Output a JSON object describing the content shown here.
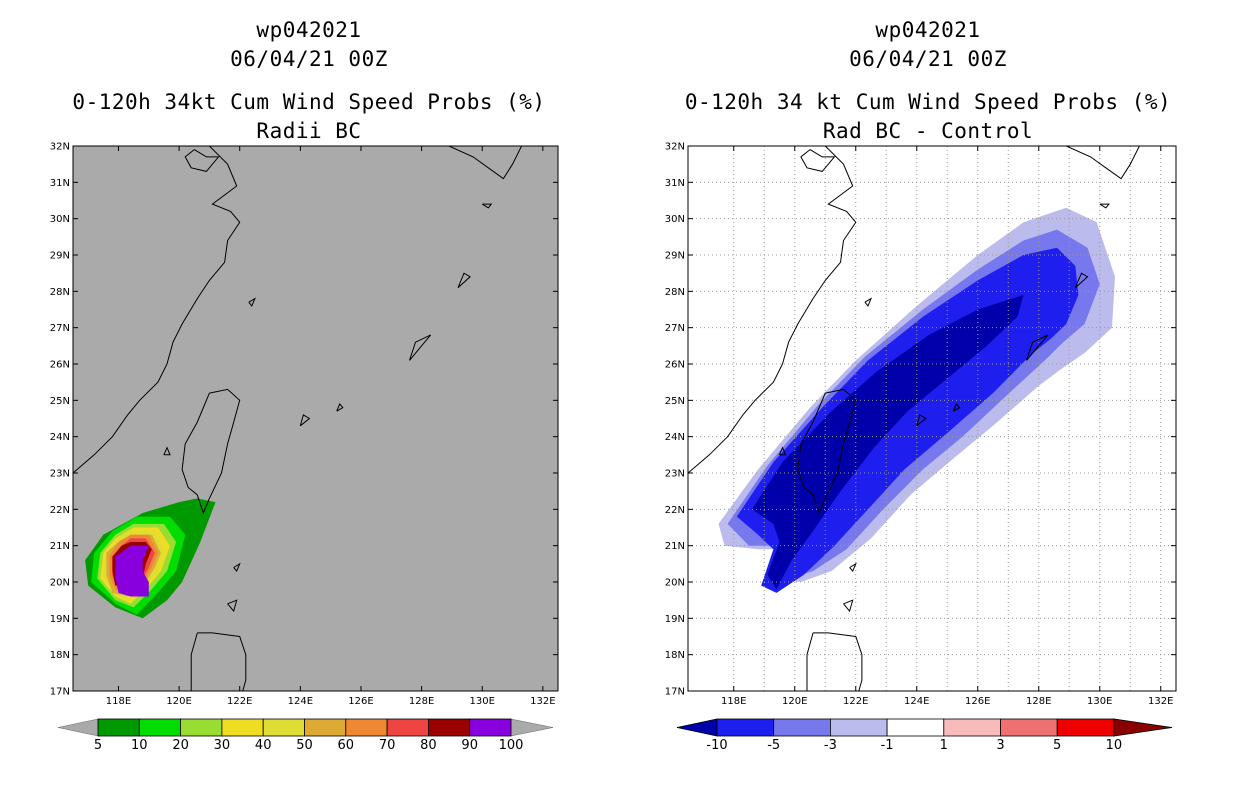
{
  "chart_data": [
    {
      "type": "heatmap",
      "run_id": "wp042021",
      "date": "06/04/21 00Z",
      "title": "0-120h 34kt Cum Wind Speed Probs (%)",
      "subtitle": "Radii BC",
      "xlim": [
        116.5,
        132.5
      ],
      "ylim": [
        17,
        32
      ],
      "x_ticks": [
        "118E",
        "120E",
        "122E",
        "124E",
        "126E",
        "128E",
        "130E",
        "132E"
      ],
      "y_ticks": [
        "17N",
        "18N",
        "19N",
        "20N",
        "21N",
        "22N",
        "23N",
        "24N",
        "25N",
        "26N",
        "27N",
        "28N",
        "29N",
        "30N",
        "31N",
        "32N"
      ],
      "gridlines": false,
      "colorbar_labels": [
        "5",
        "10",
        "20",
        "30",
        "40",
        "50",
        "60",
        "70",
        "80",
        "90",
        "100"
      ],
      "colorbar_colors": [
        "#009900",
        "#00dd00",
        "#99dd33",
        "#eedd22",
        "#dddd33",
        "#ddaa33",
        "#ee8833",
        "#ee4444",
        "#990000",
        "#8800dd"
      ],
      "contours": [
        {
          "level": 5,
          "color": "#009900",
          "points": [
            [
              118.8,
              21.9
            ],
            [
              120.0,
              22.2
            ],
            [
              120.6,
              22.3
            ],
            [
              121.2,
              22.2
            ],
            [
              120.7,
              21.1
            ],
            [
              120.1,
              20.0
            ],
            [
              119.6,
              19.5
            ],
            [
              118.8,
              19.0
            ],
            [
              117.9,
              19.3
            ],
            [
              117.0,
              19.9
            ],
            [
              116.9,
              20.6
            ],
            [
              117.5,
              21.3
            ]
          ]
        },
        {
          "level": 10,
          "color": "#00dd00",
          "points": [
            [
              118.6,
              21.8
            ],
            [
              119.7,
              21.8
            ],
            [
              120.2,
              21.3
            ],
            [
              119.9,
              20.3
            ],
            [
              119.3,
              19.7
            ],
            [
              118.6,
              19.1
            ],
            [
              117.9,
              19.4
            ],
            [
              117.1,
              20.0
            ],
            [
              117.2,
              20.8
            ],
            [
              117.8,
              21.4
            ]
          ]
        },
        {
          "level": 20,
          "color": "#99dd33",
          "points": [
            [
              118.5,
              21.6
            ],
            [
              119.5,
              21.6
            ],
            [
              119.9,
              21.1
            ],
            [
              119.6,
              20.3
            ],
            [
              119.1,
              19.8
            ],
            [
              118.5,
              19.3
            ],
            [
              117.9,
              19.5
            ],
            [
              117.3,
              20.1
            ],
            [
              117.4,
              20.8
            ],
            [
              117.9,
              21.3
            ]
          ]
        },
        {
          "level": 30,
          "color": "#eedd22",
          "points": [
            [
              118.5,
              21.5
            ],
            [
              119.3,
              21.5
            ],
            [
              119.7,
              21.0
            ],
            [
              119.4,
              20.3
            ],
            [
              119.0,
              19.9
            ],
            [
              118.4,
              19.4
            ],
            [
              117.9,
              19.6
            ],
            [
              117.4,
              20.1
            ],
            [
              117.5,
              20.8
            ],
            [
              117.9,
              21.2
            ]
          ]
        },
        {
          "level": 40,
          "color": "#dddd33",
          "points": [
            [
              118.4,
              21.4
            ],
            [
              119.2,
              21.4
            ],
            [
              119.5,
              20.9
            ],
            [
              119.3,
              20.3
            ],
            [
              118.9,
              19.9
            ],
            [
              118.3,
              19.5
            ],
            [
              117.8,
              19.7
            ],
            [
              117.5,
              20.2
            ],
            [
              117.6,
              20.8
            ],
            [
              118.0,
              21.2
            ]
          ]
        },
        {
          "level": 50,
          "color": "#ddaa33",
          "points": [
            [
              118.4,
              21.3
            ],
            [
              119.1,
              21.3
            ],
            [
              119.4,
              20.8
            ],
            [
              119.2,
              20.4
            ],
            [
              118.9,
              20.0
            ],
            [
              118.3,
              19.6
            ],
            [
              117.8,
              19.7
            ],
            [
              117.6,
              20.2
            ],
            [
              117.6,
              20.8
            ],
            [
              118.0,
              21.1
            ]
          ]
        },
        {
          "level": 60,
          "color": "#ee8833",
          "points": [
            [
              118.4,
              21.3
            ],
            [
              119.0,
              21.3
            ],
            [
              119.3,
              20.8
            ],
            [
              119.1,
              20.4
            ],
            [
              118.8,
              20.0
            ],
            [
              118.3,
              19.7
            ],
            [
              117.9,
              19.8
            ],
            [
              117.7,
              20.2
            ],
            [
              117.7,
              20.7
            ],
            [
              118.0,
              21.1
            ]
          ]
        },
        {
          "level": 70,
          "color": "#ee4444",
          "points": [
            [
              118.4,
              21.2
            ],
            [
              118.9,
              21.2
            ],
            [
              119.2,
              20.8
            ],
            [
              119.0,
              20.4
            ],
            [
              118.8,
              20.1
            ],
            [
              118.3,
              19.8
            ],
            [
              117.9,
              19.9
            ],
            [
              117.8,
              20.2
            ],
            [
              117.8,
              20.7
            ],
            [
              118.1,
              21.0
            ]
          ]
        },
        {
          "level": 80,
          "color": "#990000",
          "points": [
            [
              118.4,
              21.1
            ],
            [
              118.9,
              21.1
            ],
            [
              119.1,
              20.9
            ],
            [
              118.9,
              20.5
            ],
            [
              118.8,
              20.1
            ],
            [
              118.3,
              19.9
            ],
            [
              117.9,
              19.9
            ],
            [
              117.8,
              20.3
            ],
            [
              117.8,
              20.7
            ],
            [
              118.1,
              21.0
            ]
          ]
        },
        {
          "level": 90,
          "color": "#8800dd",
          "points": [
            [
              118.4,
              21.0
            ],
            [
              119.0,
              21.0
            ],
            [
              118.8,
              20.6
            ],
            [
              118.8,
              20.3
            ],
            [
              119.0,
              20.0
            ],
            [
              119.0,
              19.6
            ],
            [
              118.4,
              19.6
            ],
            [
              118.0,
              19.7
            ],
            [
              117.9,
              20.1
            ],
            [
              117.9,
              20.7
            ]
          ]
        }
      ]
    },
    {
      "type": "heatmap",
      "run_id": "wp042021",
      "date": "06/04/21 00Z",
      "title": "0-120h 34 kt Cum Wind Speed Probs (%)",
      "subtitle": "Rad BC - Control",
      "xlim": [
        116.5,
        132.5
      ],
      "ylim": [
        17,
        32
      ],
      "x_ticks": [
        "118E",
        "120E",
        "122E",
        "124E",
        "126E",
        "128E",
        "130E",
        "132E"
      ],
      "y_ticks": [
        "17N",
        "18N",
        "19N",
        "20N",
        "21N",
        "22N",
        "23N",
        "24N",
        "25N",
        "26N",
        "27N",
        "28N",
        "29N",
        "30N",
        "31N",
        "32N"
      ],
      "gridlines": true,
      "colorbar_labels": [
        "-10",
        "-5",
        "-3",
        "-1",
        "1",
        "3",
        "5",
        "10"
      ],
      "colorbar_colors": [
        "#0000aa",
        "#1e1eee",
        "#7777ee",
        "#bbbbee",
        "#ffffff",
        "#f7bbbb",
        "#ee7070",
        "#ee0000",
        "#880000"
      ],
      "contours": [
        {
          "level": -1,
          "color": "#bbbbee",
          "points": [
            [
              117.5,
              21.6
            ],
            [
              118.8,
              23.1
            ],
            [
              120.5,
              24.8
            ],
            [
              122.0,
              26.1
            ],
            [
              124.0,
              27.6
            ],
            [
              126.0,
              29.0
            ],
            [
              127.5,
              29.9
            ],
            [
              128.9,
              30.3
            ],
            [
              129.9,
              29.9
            ],
            [
              130.5,
              28.4
            ],
            [
              130.4,
              27.0
            ],
            [
              129.5,
              26.3
            ],
            [
              128.8,
              25.9
            ],
            [
              128.0,
              25.4
            ],
            [
              126.5,
              24.3
            ],
            [
              125.2,
              23.4
            ],
            [
              123.8,
              22.4
            ],
            [
              122.5,
              21.2
            ],
            [
              121.2,
              20.3
            ],
            [
              120.2,
              20.0
            ],
            [
              119.4,
              20.1
            ],
            [
              119.4,
              20.9
            ],
            [
              118.8,
              20.9
            ],
            [
              117.7,
              21.0
            ]
          ]
        },
        {
          "level": -3,
          "color": "#7777ee",
          "points": [
            [
              117.8,
              21.6
            ],
            [
              119.1,
              23.2
            ],
            [
              120.8,
              24.9
            ],
            [
              122.3,
              26.2
            ],
            [
              124.2,
              27.5
            ],
            [
              126.0,
              28.6
            ],
            [
              127.5,
              29.4
            ],
            [
              128.6,
              29.7
            ],
            [
              129.6,
              29.2
            ],
            [
              130.0,
              28.2
            ],
            [
              129.5,
              27.1
            ],
            [
              128.8,
              26.6
            ],
            [
              128.2,
              26.1
            ],
            [
              126.9,
              25.1
            ],
            [
              125.5,
              24.0
            ],
            [
              124.2,
              23.1
            ],
            [
              122.9,
              22.0
            ],
            [
              121.7,
              20.9
            ],
            [
              120.6,
              20.3
            ],
            [
              119.8,
              20.1
            ],
            [
              119.4,
              20.4
            ],
            [
              119.4,
              21.0
            ],
            [
              118.5,
              21.0
            ]
          ]
        },
        {
          "level": -5,
          "color": "#1e1eee",
          "points": [
            [
              118.1,
              21.8
            ],
            [
              119.3,
              23.3
            ],
            [
              120.9,
              24.8
            ],
            [
              122.4,
              26.1
            ],
            [
              124.2,
              27.3
            ],
            [
              126.0,
              28.3
            ],
            [
              127.5,
              29.0
            ],
            [
              128.6,
              29.2
            ],
            [
              129.2,
              28.7
            ],
            [
              129.3,
              27.9
            ],
            [
              128.9,
              27.1
            ],
            [
              128.4,
              26.7
            ],
            [
              127.8,
              26.3
            ],
            [
              126.5,
              25.2
            ],
            [
              125.0,
              24.1
            ],
            [
              123.6,
              23.1
            ],
            [
              122.4,
              22.0
            ],
            [
              121.3,
              21.0
            ],
            [
              120.3,
              20.2
            ],
            [
              119.4,
              19.7
            ],
            [
              118.9,
              19.9
            ],
            [
              119.3,
              20.9
            ],
            [
              118.8,
              21.3
            ]
          ]
        },
        {
          "level": -10,
          "color": "#0000aa",
          "points": [
            [
              118.6,
              22.0
            ],
            [
              119.6,
              23.3
            ],
            [
              121.2,
              24.7
            ],
            [
              122.7,
              25.8
            ],
            [
              124.4,
              26.8
            ],
            [
              126.0,
              27.5
            ],
            [
              127.5,
              27.9
            ],
            [
              127.3,
              27.3
            ],
            [
              126.3,
              26.5
            ],
            [
              125.0,
              25.6
            ],
            [
              123.7,
              24.7
            ],
            [
              122.6,
              23.7
            ],
            [
              121.5,
              22.5
            ],
            [
              120.6,
              21.4
            ],
            [
              119.9,
              20.6
            ],
            [
              119.4,
              19.8
            ],
            [
              119.1,
              20.2
            ],
            [
              119.5,
              21.1
            ],
            [
              119.3,
              21.6
            ]
          ]
        }
      ]
    }
  ]
}
